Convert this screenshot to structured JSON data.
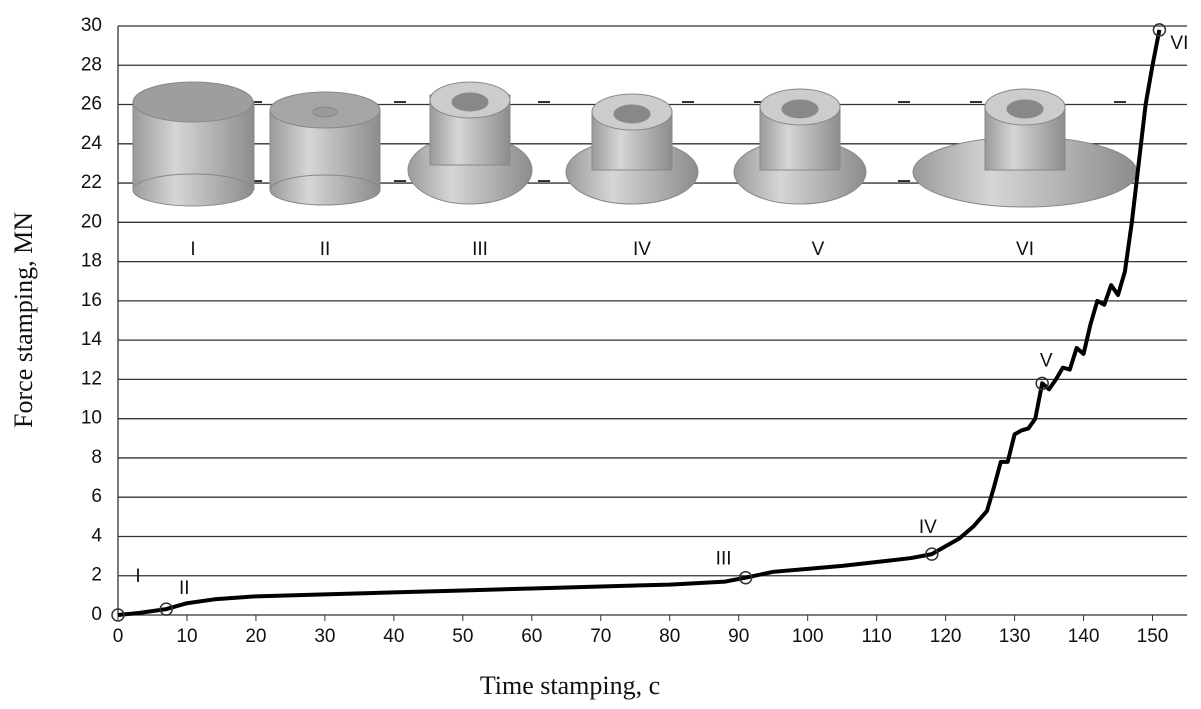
{
  "chart_data": {
    "type": "line",
    "x_label": "Time stamping, c",
    "y_label": "Force stamping, MN",
    "x": [
      0,
      3,
      7,
      10,
      14,
      20,
      30,
      40,
      50,
      60,
      70,
      80,
      88,
      91,
      95,
      100,
      105,
      110,
      115,
      118,
      120,
      122,
      124,
      126,
      127,
      128,
      129,
      130,
      131,
      132,
      133,
      134,
      135,
      136,
      137,
      138,
      139,
      140,
      141,
      142,
      143,
      144,
      145,
      146,
      147,
      148,
      149,
      150,
      151
    ],
    "values": [
      0,
      0.1,
      0.3,
      0.6,
      0.8,
      0.95,
      1.05,
      1.15,
      1.25,
      1.35,
      1.45,
      1.55,
      1.7,
      1.9,
      2.2,
      2.35,
      2.5,
      2.7,
      2.9,
      3.1,
      3.5,
      3.9,
      4.5,
      5.3,
      6.5,
      7.8,
      7.8,
      9.2,
      9.4,
      9.5,
      10.0,
      11.8,
      11.5,
      12.0,
      12.6,
      12.5,
      13.6,
      13.3,
      14.8,
      16.0,
      15.8,
      16.8,
      16.3,
      17.5,
      20,
      23,
      26,
      28,
      29.8
    ],
    "color": "#000000",
    "markers": [
      {
        "label": "I",
        "x": 0,
        "y": 0
      },
      {
        "label": "II",
        "x": 7,
        "y": 0.3
      },
      {
        "label": "III",
        "x": 91,
        "y": 1.9
      },
      {
        "label": "IV",
        "x": 118,
        "y": 3.1
      },
      {
        "label": "V",
        "x": 134,
        "y": 11.8
      },
      {
        "label": "VI",
        "x": 151,
        "y": 29.8
      }
    ],
    "xlim": [
      0,
      155
    ],
    "xticks": [
      0,
      10,
      20,
      30,
      40,
      50,
      60,
      70,
      80,
      90,
      100,
      110,
      120,
      130,
      140,
      150
    ],
    "ylim": [
      0,
      30
    ],
    "yticks": [
      0,
      2,
      4,
      6,
      8,
      10,
      12,
      14,
      16,
      18,
      20,
      22,
      24,
      26,
      28,
      30
    ],
    "grid": true
  }
}
